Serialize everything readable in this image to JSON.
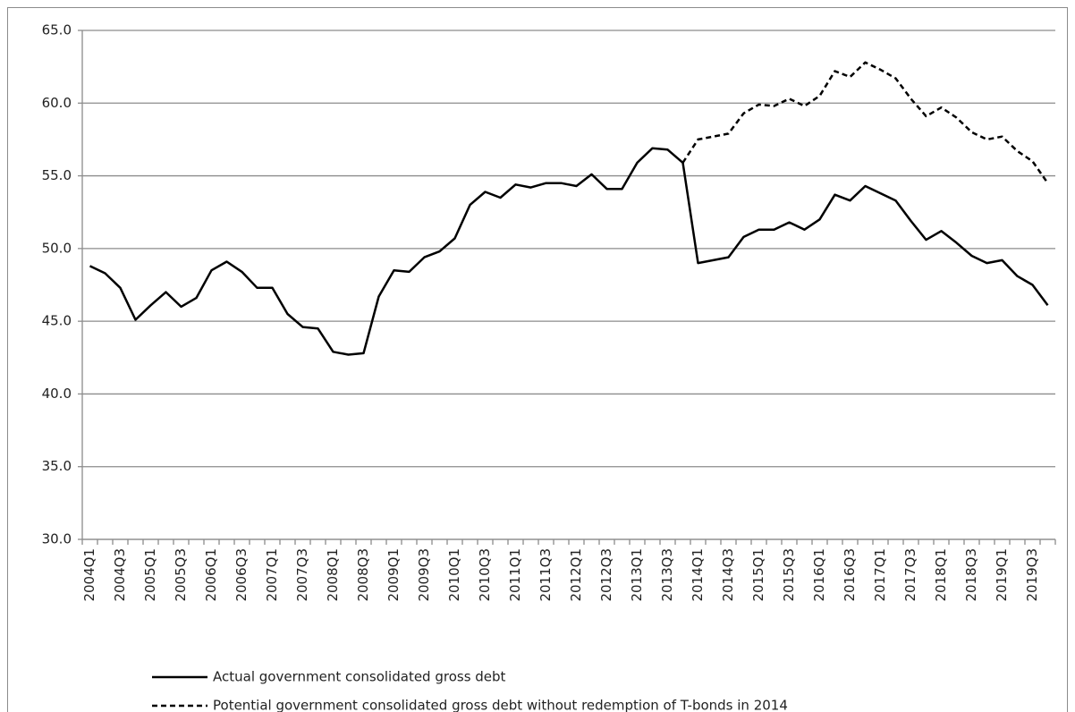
{
  "chart_data": {
    "type": "line",
    "categories": [
      "2004Q1",
      null,
      "2004Q3",
      null,
      "2005Q1",
      null,
      "2005Q3",
      null,
      "2006Q1",
      null,
      "2006Q3",
      null,
      "2007Q1",
      null,
      "2007Q3",
      null,
      "2008Q1",
      null,
      "2008Q3",
      null,
      "2009Q1",
      null,
      "2009Q3",
      null,
      "2010Q1",
      null,
      "2010Q3",
      null,
      "2011Q1",
      null,
      "2011Q3",
      null,
      "2012Q1",
      null,
      "2012Q3",
      null,
      "2013Q1",
      null,
      "2013Q3",
      null,
      "2014Q1",
      null,
      "2014Q3",
      null,
      "2015Q1",
      null,
      "2015Q3",
      null,
      "2016Q1",
      null,
      "2016Q3",
      null,
      "2017Q1",
      null,
      "2017Q3",
      null,
      "2018Q1",
      null,
      "2018Q3",
      null,
      "2019Q1",
      null,
      "2019Q3",
      null
    ],
    "series": [
      {
        "name": "Actual government consolidated gross debt",
        "color": "#000000",
        "dash": "solid",
        "values": [
          48.8,
          48.3,
          47.3,
          45.1,
          46.1,
          47.0,
          46.0,
          46.6,
          48.5,
          49.1,
          48.4,
          47.3,
          47.3,
          45.5,
          44.6,
          44.5,
          42.9,
          42.7,
          42.8,
          46.7,
          48.5,
          48.4,
          49.4,
          49.8,
          50.7,
          53.0,
          53.9,
          53.5,
          54.4,
          54.2,
          54.5,
          54.5,
          54.3,
          55.1,
          54.1,
          54.1,
          55.9,
          56.9,
          56.8,
          55.9,
          49.0,
          49.2,
          49.4,
          50.8,
          51.3,
          51.3,
          51.8,
          51.3,
          52.0,
          53.7,
          53.3,
          54.3,
          53.8,
          53.3,
          51.9,
          50.6,
          51.2,
          50.4,
          49.5,
          49.0,
          49.2,
          48.1,
          47.5,
          46.1
        ]
      },
      {
        "name": "Potential government consolidated gross debt without redemption of T-bonds in 2014",
        "color": "#000000",
        "dash": "dashed",
        "values": [
          null,
          null,
          null,
          null,
          null,
          null,
          null,
          null,
          null,
          null,
          null,
          null,
          null,
          null,
          null,
          null,
          null,
          null,
          null,
          null,
          null,
          null,
          null,
          null,
          null,
          null,
          null,
          null,
          null,
          null,
          null,
          null,
          null,
          null,
          null,
          null,
          null,
          null,
          null,
          55.9,
          57.5,
          57.7,
          57.9,
          59.3,
          59.9,
          59.8,
          60.3,
          59.8,
          60.5,
          62.2,
          61.8,
          62.8,
          62.3,
          61.7,
          60.3,
          59.1,
          59.7,
          59.0,
          58.0,
          57.5,
          57.7,
          56.7,
          56.0,
          54.5
        ]
      }
    ],
    "ylim": [
      30,
      65
    ],
    "yticks": [
      {
        "value": 30,
        "label": "30.0"
      },
      {
        "value": 35,
        "label": "35.0"
      },
      {
        "value": 40,
        "label": "40.0"
      },
      {
        "value": 45,
        "label": "45.0"
      },
      {
        "value": 50,
        "label": "50.0"
      },
      {
        "value": 55,
        "label": "55.0"
      },
      {
        "value": 60,
        "label": "60.0"
      },
      {
        "value": 65,
        "label": "65.0"
      }
    ],
    "grid": true,
    "legend": "bottom"
  }
}
